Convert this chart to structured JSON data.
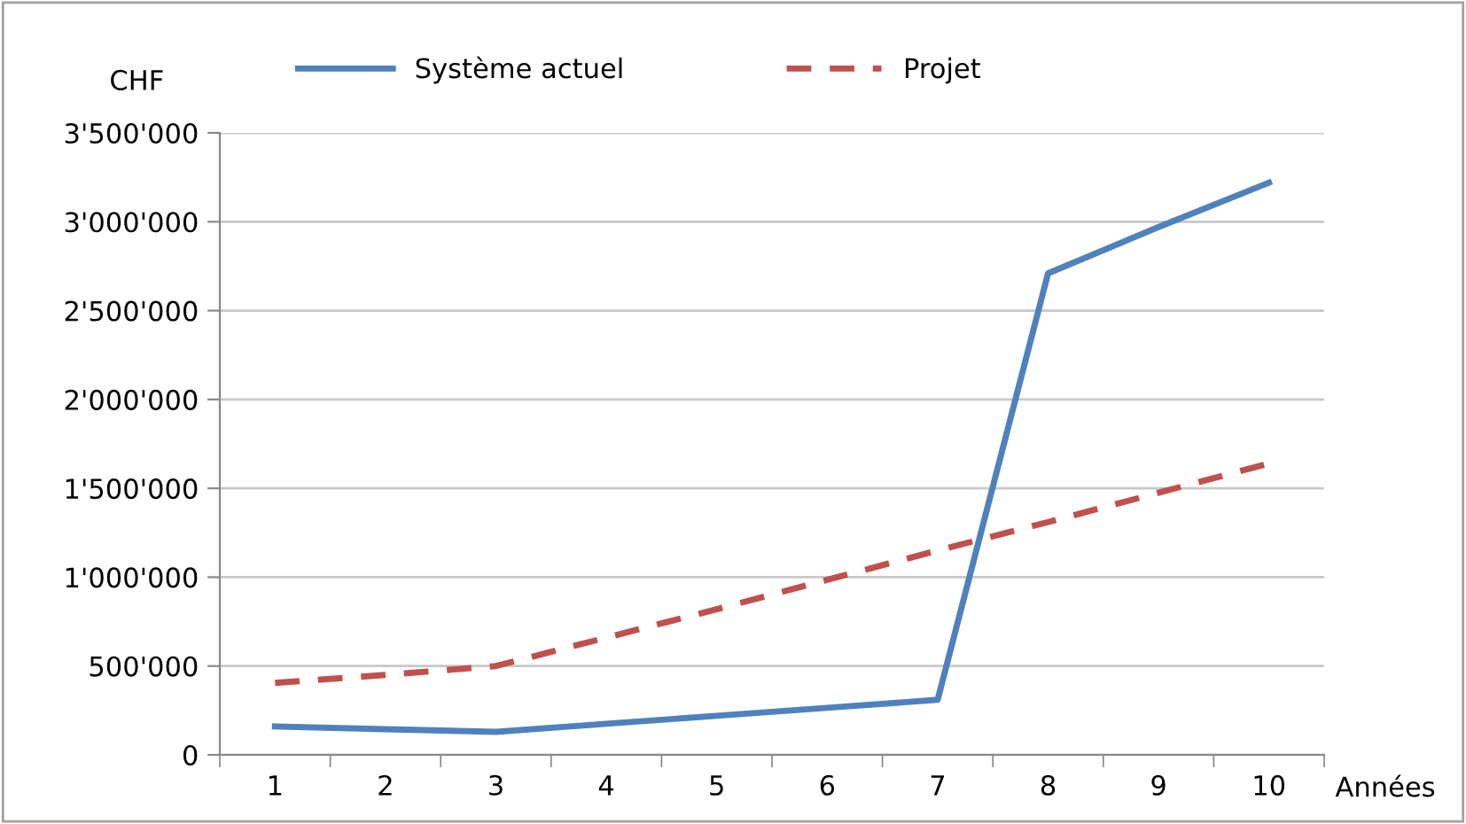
{
  "chart_data": {
    "type": "line",
    "ylabel": "CHF",
    "xlabel": "Années",
    "categories": [
      "1",
      "2",
      "3",
      "4",
      "5",
      "6",
      "7",
      "8",
      "9",
      "10"
    ],
    "series": [
      {
        "name": "Système actuel",
        "color": "#4f81bd",
        "line_style": "solid",
        "values": [
          160000,
          145000,
          130000,
          175000,
          220000,
          265000,
          310000,
          2710000,
          2970000,
          3220000
        ]
      },
      {
        "name": "Projet",
        "color": "#c0504d",
        "line_style": "dashed",
        "values": [
          405000,
          450000,
          500000,
          660000,
          820000,
          985000,
          1150000,
          1310000,
          1475000,
          1640000
        ]
      }
    ],
    "ylim": [
      0,
      3500000
    ],
    "yticks": [
      0,
      {
        "value": 500000,
        "label": "500'000"
      },
      {
        "value": 1000000,
        "label": "1'000'000"
      },
      {
        "value": 1500000,
        "label": "1'500'000"
      },
      {
        "value": 2000000,
        "label": "2'000'000"
      },
      {
        "value": 2500000,
        "label": "2'500'000"
      },
      {
        "value": 3000000,
        "label": "3'000'000"
      },
      {
        "value": 3500000,
        "label": "3'500'000"
      }
    ],
    "grid": "y",
    "legend": "top",
    "marker": "none"
  }
}
